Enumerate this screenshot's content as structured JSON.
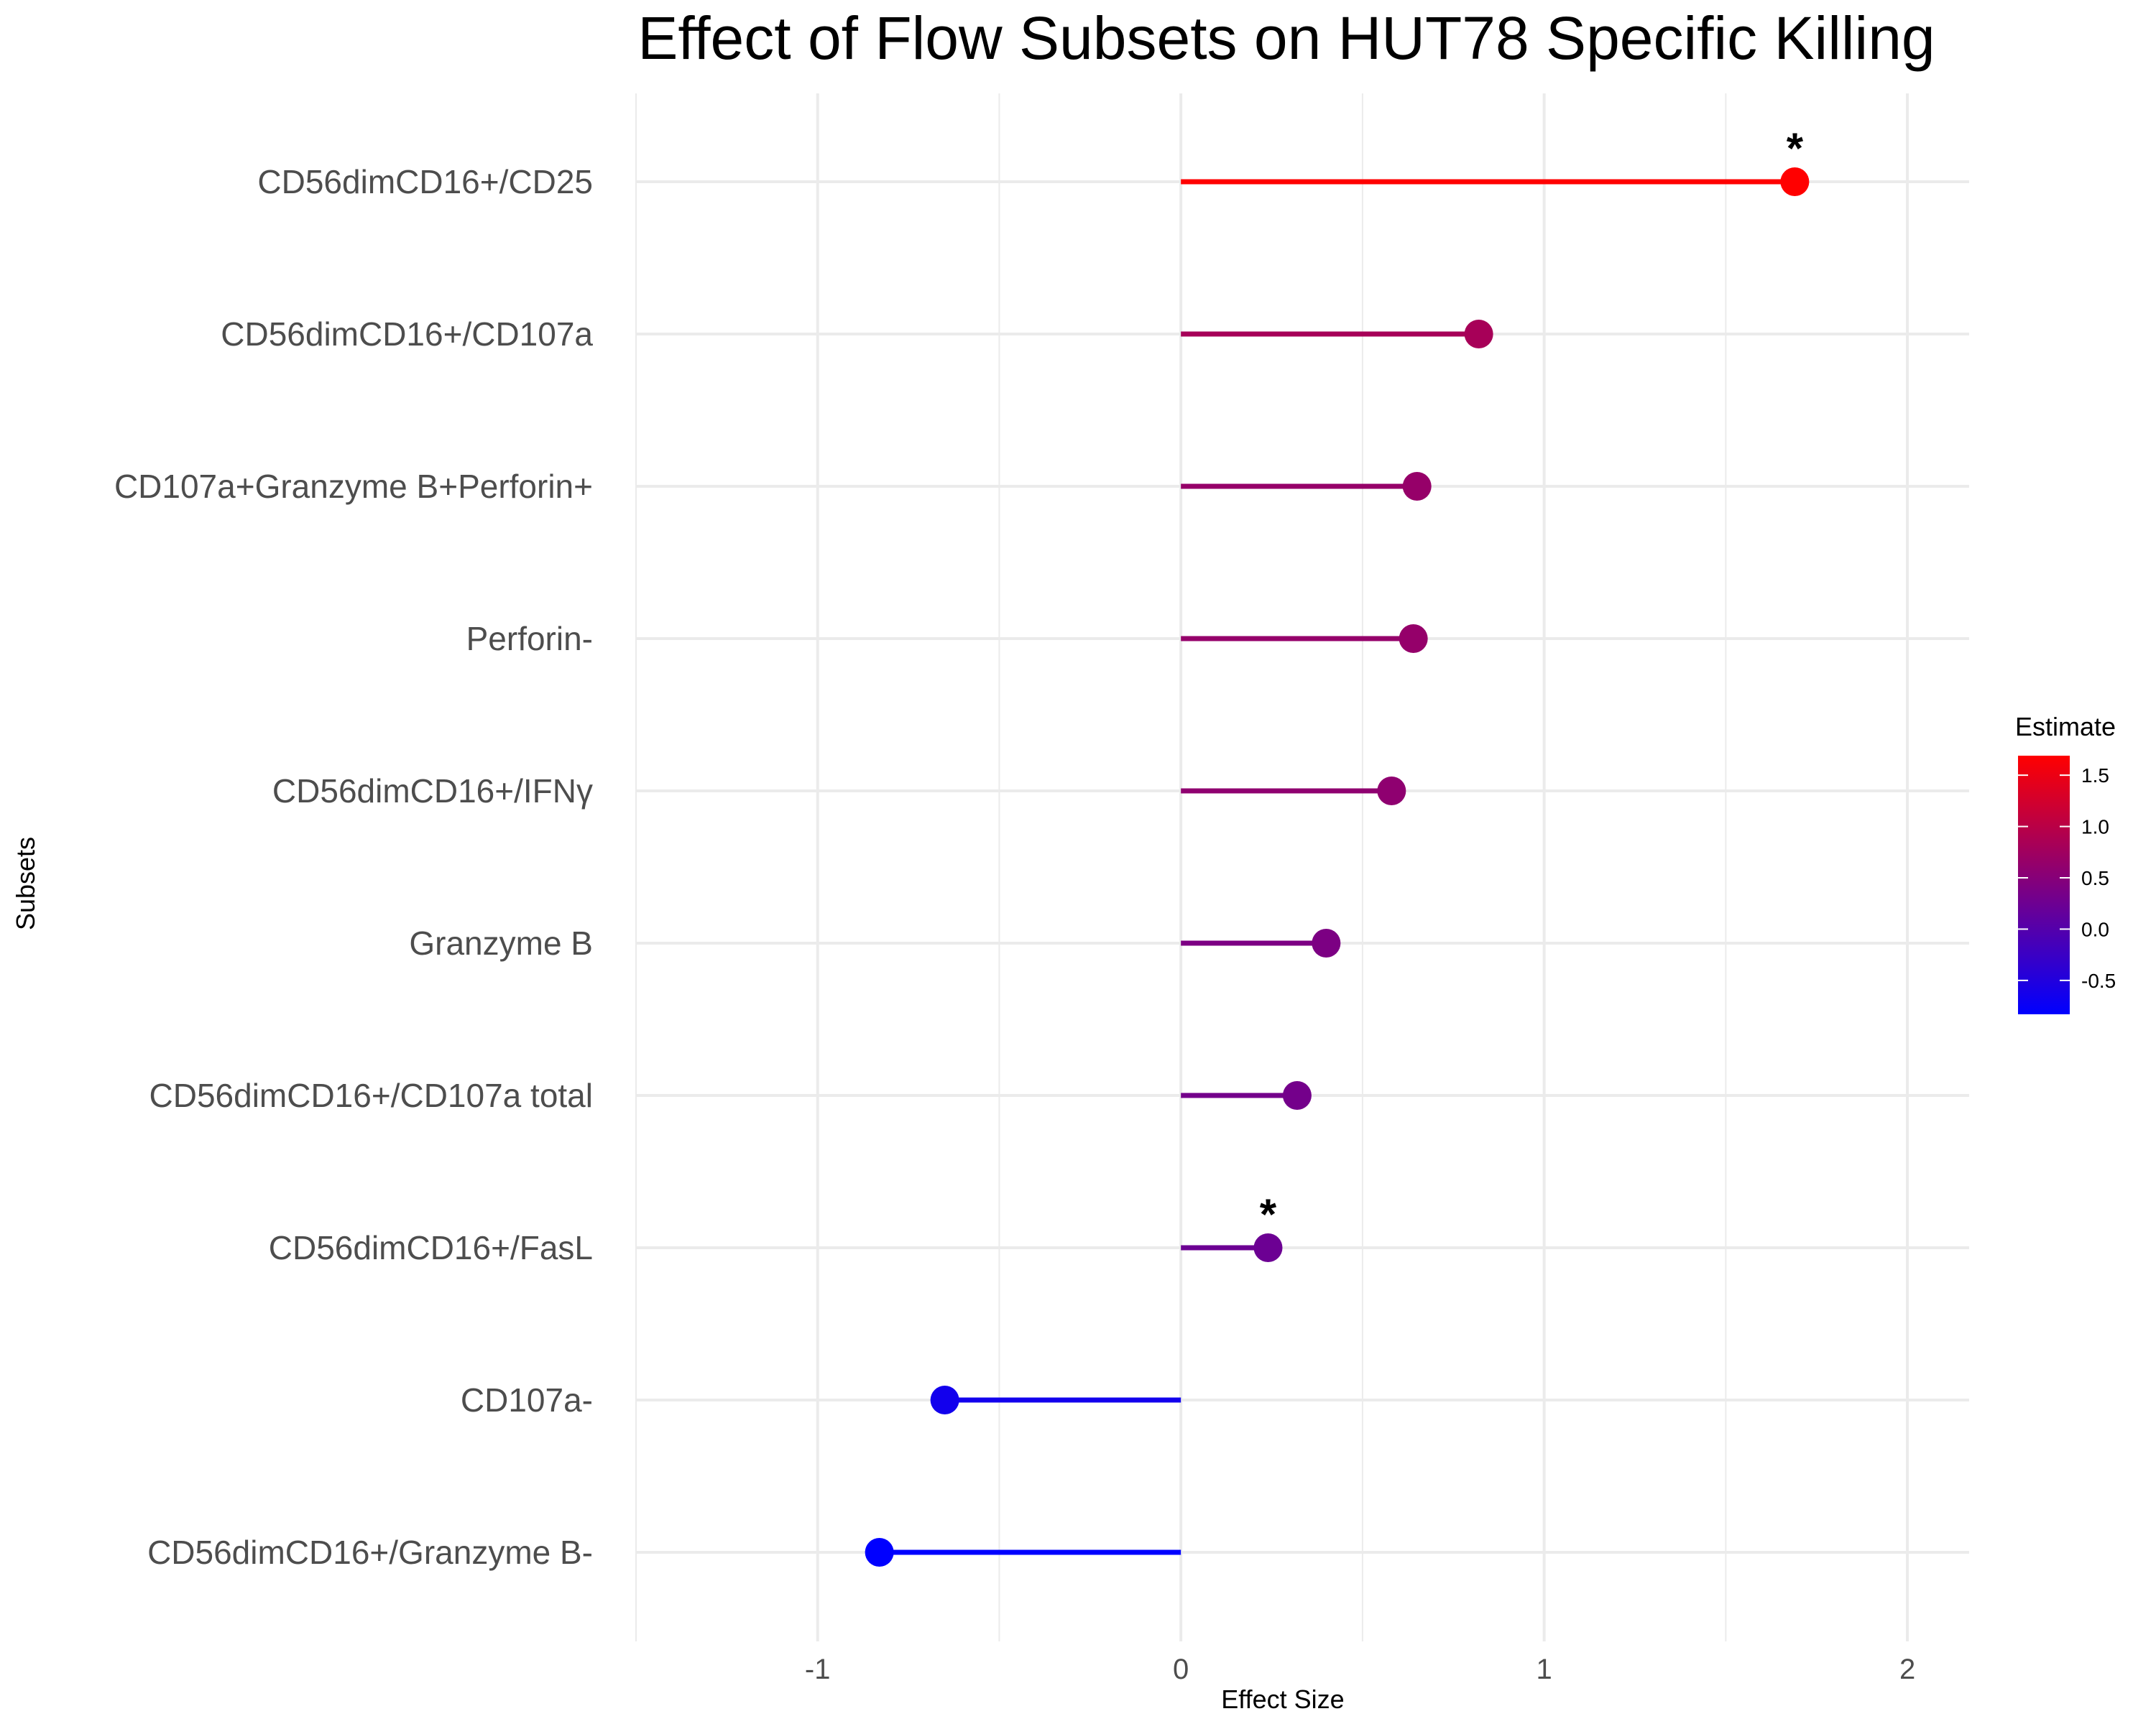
{
  "chart_data": {
    "type": "lollipop",
    "title": "Effect of Flow Subsets on HUT78 Specific Killing",
    "xlabel": "Effect Size",
    "ylabel": "Subsets",
    "xlim": [
      -1.5,
      2.17
    ],
    "x_ticks": [
      -1,
      0,
      1,
      2
    ],
    "x_tick_labels": [
      "-1",
      "0",
      "1",
      "2"
    ],
    "grid": true,
    "categories": [
      "CD56dimCD16+/CD25",
      "CD56dimCD16+/CD107a",
      "CD107a+Granzyme B+Perforin+",
      "Perforin-",
      "CD56dimCD16+/IFNγ",
      "Granzyme B",
      "CD56dimCD16+/CD107a total",
      "CD56dimCD16+/FasL",
      "CD107a-",
      "CD56dimCD16+/Granzyme B-"
    ],
    "values": [
      1.69,
      0.82,
      0.65,
      0.64,
      0.58,
      0.4,
      0.32,
      0.24,
      -0.65,
      -0.83
    ],
    "significance": [
      "*",
      "",
      "",
      "",
      "",
      "",
      "",
      "*",
      "",
      ""
    ],
    "legend": {
      "title": "Estimate",
      "position": "right",
      "range": [
        -0.83,
        1.69
      ],
      "ticks": [
        1.5,
        1.0,
        0.5,
        0.0,
        -0.5
      ],
      "tick_labels": [
        "1.5",
        "1.0",
        "0.5",
        "0.0",
        "-0.5"
      ],
      "color_low": "#0000ff",
      "color_high": "#ff0000"
    }
  }
}
